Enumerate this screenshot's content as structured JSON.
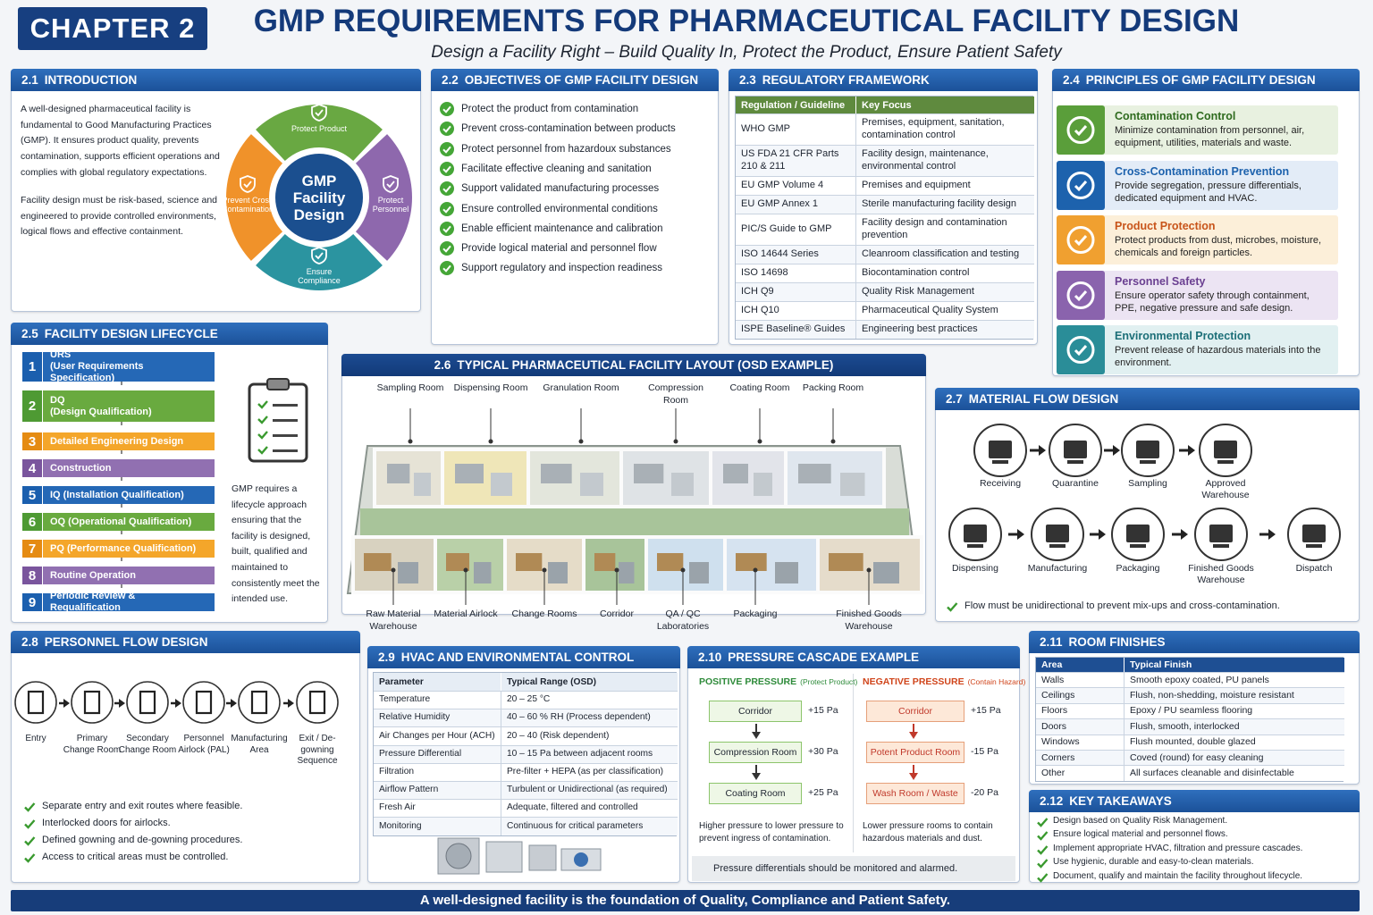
{
  "header": {
    "chapter": "CHAPTER 2",
    "title": "GMP REQUIREMENTS FOR PHARMACEUTICAL FACILITY DESIGN",
    "subtitle": "Design a Facility Right – Build Quality In, Protect the Product, Ensure Patient Safety"
  },
  "introduction": {
    "number": "2.1",
    "title": "INTRODUCTION",
    "paragraphs": [
      "A well-designed pharmaceutical facility is fundamental to Good Manufacturing Practices (GMP). It ensures product quality, prevents contamination, supports efficient operations and complies with global regulatory expectations.",
      "Facility design must be risk-based, science and engineered to provide controlled environments, logical flows and effective containment."
    ],
    "wheel": {
      "center": "GMP Facility Design",
      "segments": [
        "Protect Product",
        "Protect Personnel",
        "Ensure Compliance",
        "Prevent Cross Contamination"
      ]
    }
  },
  "objectives": {
    "number": "2.2",
    "title": "OBJECTIVES OF GMP FACILITY DESIGN",
    "items": [
      "Protect the product from contamination",
      "Prevent cross-contamination between products",
      "Protect personnel from hazardoux substances",
      "Facilitate effective cleaning and sanitation",
      "Support validated manufacturing processes",
      "Ensure controlled environmental conditions",
      "Enable efficient maintenance and calibration",
      "Provide logical material and personnel flow",
      "Support regulatory and inspection readiness"
    ]
  },
  "regulatory_framework": {
    "number": "2.3",
    "title": "REGULATORY FRAMEWORK",
    "columns": [
      "Regulation / Guideline",
      "Key Focus"
    ],
    "rows": [
      [
        "WHO GMP",
        "Premises, equipment, sanitation, contamination control"
      ],
      [
        "US FDA 21 CFR Parts 210 & 211",
        "Facility design, maintenance, environmental control"
      ],
      [
        "EU GMP Volume 4",
        "Premises and equipment"
      ],
      [
        "EU GMP Annex 1",
        "Sterile manufacturing facility design"
      ],
      [
        "PIC/S Guide to GMP",
        "Facility design and contamination prevention"
      ],
      [
        "ISO 14644 Series",
        "Cleanroom classification and testing"
      ],
      [
        "ISO 14698",
        "Biocontamination control"
      ],
      [
        "ICH Q9",
        "Quality Risk Management"
      ],
      [
        "ICH Q10",
        "Pharmaceutical Quality System"
      ],
      [
        "ISPE Baseline® Guides",
        "Engineering best practices"
      ]
    ]
  },
  "principles": {
    "number": "2.4",
    "title": "PRINCIPLES OF GMP FACILITY DESIGN",
    "items": [
      {
        "title": "Contamination Control",
        "description": "Minimize contamination from personnel, air, equipment, utilities, materials and waste."
      },
      {
        "title": "Cross-Contamination Prevention",
        "description": "Provide segregation, pressure differentials, dedicated equipment and HVAC."
      },
      {
        "title": "Product Protection",
        "description": "Protect products from dust, microbes, moisture, chemicals and foreign particles."
      },
      {
        "title": "Personnel Safety",
        "description": "Ensure operator safety through containment, PPE, negative pressure and safe design."
      },
      {
        "title": "Environmental Protection",
        "description": "Prevent release of hazardous materials into the environment."
      }
    ]
  },
  "lifecycle": {
    "number": "2.5",
    "title": "FACILITY DESIGN LIFECYCLE",
    "steps": [
      {
        "number": "1",
        "title": "URS",
        "subtitle": "(User Requirements Specification)"
      },
      {
        "number": "2",
        "title": "DQ",
        "subtitle": "(Design Qualification)"
      },
      {
        "number": "3",
        "title": "Detailed Engineering Design"
      },
      {
        "number": "4",
        "title": "Construction"
      },
      {
        "number": "5",
        "title": "IQ (Installation Qualification)"
      },
      {
        "number": "6",
        "title": "OQ (Operational Qualification)"
      },
      {
        "number": "7",
        "title": "PQ (Performance Qualification)"
      },
      {
        "number": "8",
        "title": "Routine Operation"
      },
      {
        "number": "9",
        "title": "Periodic Review & Requalification"
      }
    ],
    "side_text": "GMP requires a lifecycle approach ensuring that the facility is designed, built, qualified and maintained to consistently meet the intended use."
  },
  "layout": {
    "number": "2.6",
    "title": "TYPICAL PHARMACEUTICAL FACILITY LAYOUT (OSD EXAMPLE)",
    "top_labels": [
      "Sampling Room",
      "Dispensing Room",
      "Granulation Room",
      "Compression Room",
      "Coating Room",
      "Packing Room"
    ],
    "bottom_labels": [
      "Raw Material Warehouse",
      "Material Airlock",
      "Change Rooms",
      "Corridor",
      "QA / QC Laboratories",
      "Packaging",
      "Finished Goods Warehouse"
    ]
  },
  "material_flow": {
    "number": "2.7",
    "title": "MATERIAL FLOW DESIGN",
    "row1": [
      "Receiving",
      "Quarantine",
      "Sampling",
      "Approved Warehouse"
    ],
    "row2": [
      "Dispensing",
      "Manufacturing",
      "Packaging",
      "Finished Goods Warehouse",
      "Dispatch"
    ],
    "note": "Flow must be unidirectional to prevent mix-ups and cross-contamination."
  },
  "personnel_flow": {
    "number": "2.8",
    "title": "PERSONNEL FLOW DESIGN",
    "steps": [
      "Entry",
      "Primary Change Room",
      "Secondary Change Room",
      "Personnel Airlock (PAL)",
      "Manufacturing Area",
      "Exit / De-gowning Sequence"
    ],
    "bullets": [
      "Separate entry and exit routes where feasible.",
      "Interlocked doors for airlocks.",
      "Defined gowning and de-gowning procedures.",
      "Access to critical areas must be controlled."
    ]
  },
  "hvac": {
    "number": "2.9",
    "title": "HVAC AND ENVIRONMENTAL CONTROL",
    "columns": [
      "Parameter",
      "Typical Range (OSD)"
    ],
    "rows": [
      [
        "Temperature",
        "20 – 25 °C"
      ],
      [
        "Relative Humidity",
        "40 – 60 % RH (Process dependent)"
      ],
      [
        "Air Changes per Hour (ACH)",
        "20 – 40 (Risk dependent)"
      ],
      [
        "Pressure Differential",
        "10 – 15 Pa between adjacent rooms"
      ],
      [
        "Filtration",
        "Pre-filter + HEPA (as per classification)"
      ],
      [
        "Airflow Pattern",
        "Turbulent or Unidirectional (as required)"
      ],
      [
        "Fresh Air",
        "Adequate, filtered and controlled"
      ],
      [
        "Monitoring",
        "Continuous for critical parameters"
      ]
    ]
  },
  "pressure_cascade": {
    "number": "2.10",
    "title": "PRESSURE CASCADE EXAMPLE",
    "positive": {
      "heading": "POSITIVE PRESSURE",
      "qualifier": "(Protect Product)",
      "rooms": [
        {
          "name": "Corridor",
          "pressure": "+15 Pa"
        },
        {
          "name": "Compression Room",
          "pressure": "+30 Pa"
        },
        {
          "name": "Coating Room",
          "pressure": "+25 Pa"
        }
      ],
      "note": "Higher pressure to lower pressure to prevent ingress of contamination."
    },
    "negative": {
      "heading": "NEGATIVE PRESSURE",
      "qualifier": "(Contain Hazard)",
      "rooms": [
        {
          "name": "Corridor",
          "pressure": "+15 Pa"
        },
        {
          "name": "Potent Product Room",
          "pressure": "-15 Pa"
        },
        {
          "name": "Wash Room / Waste",
          "pressure": "-20 Pa"
        }
      ],
      "note": "Lower pressure rooms to contain hazardous materials and dust."
    },
    "footer_note": "Pressure differentials should be monitored and alarmed."
  },
  "room_finishes": {
    "number": "2.11",
    "title": "ROOM FINISHES",
    "columns": [
      "Area",
      "Typical Finish"
    ],
    "rows": [
      [
        "Walls",
        "Smooth epoxy coated, PU panels"
      ],
      [
        "Ceilings",
        "Flush, non-shedding, moisture resistant"
      ],
      [
        "Floors",
        "Epoxy / PU seamless flooring"
      ],
      [
        "Doors",
        "Flush, smooth, interlocked"
      ],
      [
        "Windows",
        "Flush mounted, double glazed"
      ],
      [
        "Corners",
        "Coved (round) for easy cleaning"
      ],
      [
        "Other",
        "All surfaces cleanable and disinfectable"
      ]
    ]
  },
  "key_takeaways": {
    "number": "2.12",
    "title": "KEY TAKEAWAYS",
    "items": [
      "Design based on Quality Risk Management.",
      "Ensure logical material and personnel flows.",
      "Implement appropriate HVAC, filtration and pressure cascades.",
      "Use hygienic, durable and easy-to-clean materials.",
      "Document, qualify and maintain the facility throughout lifecycle."
    ]
  },
  "footer": {
    "text": "A well-designed facility is the foundation of Quality, Compliance and Patient Safety."
  }
}
